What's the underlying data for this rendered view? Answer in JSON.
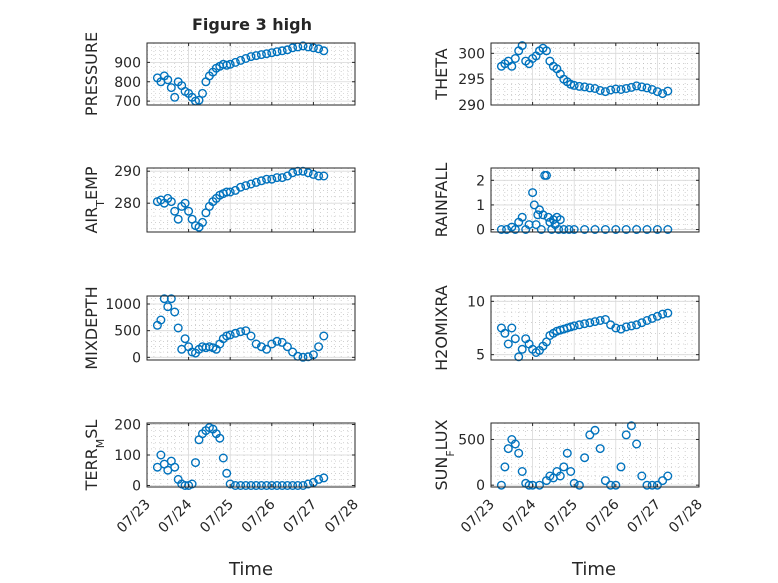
{
  "figure": {
    "title": "Figure 3 high",
    "xlabel": "Time",
    "date_ticks": [
      "07/23",
      "07/24",
      "07/25",
      "07/26",
      "07/27",
      "07/28"
    ],
    "colors": {
      "marker": "#0072BD",
      "axis": "#262626",
      "grid": "#b5b5b5"
    }
  },
  "chart_data": [
    {
      "type": "scatter",
      "ylabel": "PRESSURE",
      "ylim": [
        680,
        1000
      ],
      "yticks": [
        700,
        800,
        900
      ],
      "x": [
        "2023-07-23 06:00",
        "2023-07-23 08:00",
        "2023-07-23 10:00",
        "2023-07-23 12:00",
        "2023-07-23 14:00",
        "2023-07-23 16:00",
        "2023-07-23 18:00",
        "2023-07-23 20:00",
        "2023-07-23 22:00",
        "2023-07-24 00:00",
        "2023-07-24 02:00",
        "2023-07-24 04:00",
        "2023-07-24 06:00",
        "2023-07-24 08:00",
        "2023-07-24 10:00",
        "2023-07-24 12:00",
        "2023-07-24 14:00",
        "2023-07-24 16:00",
        "2023-07-24 18:00",
        "2023-07-24 20:00",
        "2023-07-24 22:00",
        "2023-07-25 00:00",
        "2023-07-25 03:00",
        "2023-07-25 06:00",
        "2023-07-25 09:00",
        "2023-07-25 12:00",
        "2023-07-25 15:00",
        "2023-07-25 18:00",
        "2023-07-25 21:00",
        "2023-07-26 00:00",
        "2023-07-26 03:00",
        "2023-07-26 06:00",
        "2023-07-26 09:00",
        "2023-07-26 12:00",
        "2023-07-26 15:00",
        "2023-07-26 18:00",
        "2023-07-26 21:00",
        "2023-07-27 00:00",
        "2023-07-27 03:00",
        "2023-07-27 06:00"
      ],
      "y": [
        820,
        800,
        830,
        810,
        770,
        720,
        800,
        780,
        750,
        740,
        720,
        700,
        705,
        740,
        800,
        830,
        850,
        870,
        880,
        890,
        885,
        890,
        900,
        910,
        920,
        930,
        935,
        940,
        945,
        950,
        955,
        960,
        965,
        975,
        980,
        985,
        980,
        975,
        970,
        960
      ]
    },
    {
      "type": "scatter",
      "ylabel": "THETA",
      "ylim": [
        290,
        302
      ],
      "yticks": [
        290,
        295,
        300
      ],
      "x": [
        "2023-07-23 06:00",
        "2023-07-23 08:00",
        "2023-07-23 10:00",
        "2023-07-23 12:00",
        "2023-07-23 14:00",
        "2023-07-23 16:00",
        "2023-07-23 18:00",
        "2023-07-23 20:00",
        "2023-07-23 22:00",
        "2023-07-24 00:00",
        "2023-07-24 02:00",
        "2023-07-24 04:00",
        "2023-07-24 06:00",
        "2023-07-24 08:00",
        "2023-07-24 10:00",
        "2023-07-24 12:00",
        "2023-07-24 14:00",
        "2023-07-24 16:00",
        "2023-07-24 18:00",
        "2023-07-24 20:00",
        "2023-07-24 22:00",
        "2023-07-25 00:00",
        "2023-07-25 03:00",
        "2023-07-25 06:00",
        "2023-07-25 09:00",
        "2023-07-25 12:00",
        "2023-07-25 15:00",
        "2023-07-25 18:00",
        "2023-07-25 21:00",
        "2023-07-26 00:00",
        "2023-07-26 03:00",
        "2023-07-26 06:00",
        "2023-07-26 09:00",
        "2023-07-26 12:00",
        "2023-07-26 15:00",
        "2023-07-26 18:00",
        "2023-07-26 21:00",
        "2023-07-27 00:00",
        "2023-07-27 03:00",
        "2023-07-27 06:00"
      ],
      "y": [
        297.5,
        298,
        298.5,
        297.5,
        299,
        300.5,
        301.5,
        298.5,
        298,
        299,
        299.5,
        300.5,
        301,
        300.5,
        298.5,
        297.5,
        297,
        296,
        295,
        294.5,
        294,
        293.8,
        293.6,
        293.5,
        293.3,
        293.2,
        292.8,
        292.6,
        292.9,
        293.1,
        293.0,
        293.2,
        293.4,
        293.7,
        293.5,
        293.3,
        293.0,
        292.6,
        292.2,
        292.7
      ]
    },
    {
      "type": "scatter",
      "ylabel": "AIR_TEMP",
      "ylim": [
        271,
        291
      ],
      "yticks": [
        280,
        290
      ],
      "x": [
        "2023-07-23 06:00",
        "2023-07-23 08:00",
        "2023-07-23 10:00",
        "2023-07-23 12:00",
        "2023-07-23 14:00",
        "2023-07-23 16:00",
        "2023-07-23 18:00",
        "2023-07-23 20:00",
        "2023-07-23 22:00",
        "2023-07-24 00:00",
        "2023-07-24 02:00",
        "2023-07-24 04:00",
        "2023-07-24 06:00",
        "2023-07-24 08:00",
        "2023-07-24 10:00",
        "2023-07-24 12:00",
        "2023-07-24 14:00",
        "2023-07-24 16:00",
        "2023-07-24 18:00",
        "2023-07-24 20:00",
        "2023-07-24 22:00",
        "2023-07-25 00:00",
        "2023-07-25 03:00",
        "2023-07-25 06:00",
        "2023-07-25 09:00",
        "2023-07-25 12:00",
        "2023-07-25 15:00",
        "2023-07-25 18:00",
        "2023-07-25 21:00",
        "2023-07-26 00:00",
        "2023-07-26 03:00",
        "2023-07-26 06:00",
        "2023-07-26 09:00",
        "2023-07-26 12:00",
        "2023-07-26 15:00",
        "2023-07-26 18:00",
        "2023-07-26 21:00",
        "2023-07-27 00:00",
        "2023-07-27 03:00",
        "2023-07-27 06:00"
      ],
      "y": [
        280.5,
        281,
        280,
        281.5,
        280.5,
        277.5,
        275,
        279,
        280,
        277.5,
        275,
        273,
        272.5,
        274,
        277,
        279,
        280.5,
        281.5,
        282.5,
        283,
        283.5,
        283.5,
        284,
        285,
        285.5,
        286,
        286.5,
        287,
        287.5,
        287.5,
        288,
        288,
        288.5,
        289.5,
        290,
        290,
        289.5,
        289,
        288.5,
        288.5
      ]
    },
    {
      "type": "scatter",
      "ylabel": "RAINFALL",
      "ylim": [
        -0.1,
        2.5
      ],
      "yticks": [
        0,
        1,
        2
      ],
      "x": [
        "2023-07-23 06:00",
        "2023-07-23 09:00",
        "2023-07-23 12:00",
        "2023-07-23 14:00",
        "2023-07-23 16:00",
        "2023-07-23 18:00",
        "2023-07-23 20:00",
        "2023-07-23 22:00",
        "2023-07-24 00:00",
        "2023-07-24 01:00",
        "2023-07-24 02:00",
        "2023-07-24 03:00",
        "2023-07-24 04:00",
        "2023-07-24 05:00",
        "2023-07-24 06:00",
        "2023-07-24 07:00",
        "2023-07-24 08:00",
        "2023-07-24 09:00",
        "2023-07-24 10:00",
        "2023-07-24 11:00",
        "2023-07-24 12:00",
        "2023-07-24 13:00",
        "2023-07-24 14:00",
        "2023-07-24 15:00",
        "2023-07-24 16:00",
        "2023-07-24 18:00",
        "2023-07-24 21:00",
        "2023-07-25 00:00",
        "2023-07-25 06:00",
        "2023-07-25 12:00",
        "2023-07-25 18:00",
        "2023-07-26 00:00",
        "2023-07-26 06:00",
        "2023-07-26 12:00",
        "2023-07-26 18:00",
        "2023-07-27 00:00",
        "2023-07-27 06:00"
      ],
      "y": [
        0,
        0,
        0.1,
        0,
        0.3,
        0.5,
        0,
        0.2,
        1.5,
        1.0,
        0.2,
        0.6,
        0.8,
        0,
        0.6,
        2.2,
        2.2,
        0.5,
        0.3,
        0,
        0.4,
        0.2,
        0.5,
        0,
        0.4,
        0,
        0,
        0,
        0,
        0,
        0,
        0,
        0,
        0,
        0,
        0,
        0
      ]
    },
    {
      "type": "scatter",
      "ylabel": "MIXDEPTH",
      "ylim": [
        -50,
        1150
      ],
      "yticks": [
        0,
        500,
        1000
      ],
      "x": [
        "2023-07-23 06:00",
        "2023-07-23 08:00",
        "2023-07-23 10:00",
        "2023-07-23 12:00",
        "2023-07-23 14:00",
        "2023-07-23 16:00",
        "2023-07-23 18:00",
        "2023-07-23 20:00",
        "2023-07-23 22:00",
        "2023-07-24 00:00",
        "2023-07-24 02:00",
        "2023-07-24 04:00",
        "2023-07-24 06:00",
        "2023-07-24 08:00",
        "2023-07-24 10:00",
        "2023-07-24 12:00",
        "2023-07-24 14:00",
        "2023-07-24 16:00",
        "2023-07-24 18:00",
        "2023-07-24 20:00",
        "2023-07-24 22:00",
        "2023-07-25 00:00",
        "2023-07-25 03:00",
        "2023-07-25 06:00",
        "2023-07-25 09:00",
        "2023-07-25 12:00",
        "2023-07-25 15:00",
        "2023-07-25 18:00",
        "2023-07-25 21:00",
        "2023-07-26 00:00",
        "2023-07-26 03:00",
        "2023-07-26 06:00",
        "2023-07-26 09:00",
        "2023-07-26 12:00",
        "2023-07-26 15:00",
        "2023-07-26 18:00",
        "2023-07-26 21:00",
        "2023-07-27 00:00",
        "2023-07-27 03:00",
        "2023-07-27 06:00"
      ],
      "y": [
        600,
        700,
        1100,
        950,
        1100,
        850,
        550,
        150,
        350,
        200,
        100,
        80,
        150,
        200,
        180,
        200,
        180,
        150,
        250,
        350,
        400,
        420,
        450,
        480,
        500,
        400,
        250,
        200,
        150,
        250,
        300,
        280,
        200,
        100,
        20,
        0,
        10,
        50,
        200,
        400
      ]
    },
    {
      "type": "scatter",
      "ylabel": "H2OMIXRA",
      "ylim": [
        4.5,
        10.5
      ],
      "yticks": [
        5,
        10
      ],
      "x": [
        "2023-07-23 06:00",
        "2023-07-23 08:00",
        "2023-07-23 10:00",
        "2023-07-23 12:00",
        "2023-07-23 14:00",
        "2023-07-23 16:00",
        "2023-07-23 18:00",
        "2023-07-23 20:00",
        "2023-07-23 22:00",
        "2023-07-24 00:00",
        "2023-07-24 02:00",
        "2023-07-24 04:00",
        "2023-07-24 06:00",
        "2023-07-24 08:00",
        "2023-07-24 10:00",
        "2023-07-24 12:00",
        "2023-07-24 14:00",
        "2023-07-24 16:00",
        "2023-07-24 18:00",
        "2023-07-24 20:00",
        "2023-07-24 22:00",
        "2023-07-25 00:00",
        "2023-07-25 03:00",
        "2023-07-25 06:00",
        "2023-07-25 09:00",
        "2023-07-25 12:00",
        "2023-07-25 15:00",
        "2023-07-25 18:00",
        "2023-07-25 21:00",
        "2023-07-26 00:00",
        "2023-07-26 03:00",
        "2023-07-26 06:00",
        "2023-07-26 09:00",
        "2023-07-26 12:00",
        "2023-07-26 15:00",
        "2023-07-26 18:00",
        "2023-07-26 21:00",
        "2023-07-27 00:00",
        "2023-07-27 03:00",
        "2023-07-27 06:00"
      ],
      "y": [
        7.5,
        7,
        6,
        7.5,
        6.5,
        4.8,
        5.5,
        6.5,
        6,
        5.5,
        5.2,
        5.4,
        5.8,
        6.2,
        6.8,
        7,
        7.2,
        7.3,
        7.4,
        7.5,
        7.6,
        7.7,
        7.8,
        7.9,
        8,
        8.1,
        8.2,
        8.3,
        7.8,
        7.5,
        7.4,
        7.6,
        7.7,
        7.8,
        8,
        8.2,
        8.4,
        8.6,
        8.8,
        8.9
      ]
    },
    {
      "type": "scatter",
      "ylabel": "TERR_MSL",
      "ylim": [
        -5,
        205
      ],
      "yticks": [
        0,
        100,
        200
      ],
      "x": [
        "2023-07-23 06:00",
        "2023-07-23 08:00",
        "2023-07-23 10:00",
        "2023-07-23 12:00",
        "2023-07-23 14:00",
        "2023-07-23 16:00",
        "2023-07-23 18:00",
        "2023-07-23 20:00",
        "2023-07-23 22:00",
        "2023-07-24 00:00",
        "2023-07-24 02:00",
        "2023-07-24 04:00",
        "2023-07-24 06:00",
        "2023-07-24 08:00",
        "2023-07-24 10:00",
        "2023-07-24 12:00",
        "2023-07-24 14:00",
        "2023-07-24 16:00",
        "2023-07-24 18:00",
        "2023-07-24 20:00",
        "2023-07-24 22:00",
        "2023-07-25 00:00",
        "2023-07-25 03:00",
        "2023-07-25 06:00",
        "2023-07-25 09:00",
        "2023-07-25 12:00",
        "2023-07-25 15:00",
        "2023-07-25 18:00",
        "2023-07-25 21:00",
        "2023-07-26 00:00",
        "2023-07-26 03:00",
        "2023-07-26 06:00",
        "2023-07-26 09:00",
        "2023-07-26 12:00",
        "2023-07-26 15:00",
        "2023-07-26 18:00",
        "2023-07-26 21:00",
        "2023-07-27 00:00",
        "2023-07-27 03:00",
        "2023-07-27 06:00"
      ],
      "y": [
        60,
        100,
        70,
        50,
        80,
        60,
        20,
        5,
        0,
        0,
        5,
        75,
        150,
        170,
        180,
        190,
        185,
        170,
        155,
        90,
        40,
        5,
        0,
        0,
        0,
        0,
        0,
        0,
        0,
        0,
        0,
        0,
        0,
        0,
        0,
        0,
        5,
        10,
        20,
        25
      ]
    },
    {
      "type": "scatter",
      "ylabel": "SUN_FLUX",
      "ylim": [
        -20,
        680
      ],
      "yticks": [
        0,
        500
      ],
      "x": [
        "2023-07-23 06:00",
        "2023-07-23 08:00",
        "2023-07-23 10:00",
        "2023-07-23 12:00",
        "2023-07-23 14:00",
        "2023-07-23 16:00",
        "2023-07-23 18:00",
        "2023-07-23 20:00",
        "2023-07-23 22:00",
        "2023-07-24 00:00",
        "2023-07-24 04:00",
        "2023-07-24 08:00",
        "2023-07-24 10:00",
        "2023-07-24 12:00",
        "2023-07-24 14:00",
        "2023-07-24 16:00",
        "2023-07-24 18:00",
        "2023-07-24 20:00",
        "2023-07-24 22:00",
        "2023-07-25 00:00",
        "2023-07-25 03:00",
        "2023-07-25 06:00",
        "2023-07-25 09:00",
        "2023-07-25 12:00",
        "2023-07-25 15:00",
        "2023-07-25 18:00",
        "2023-07-25 21:00",
        "2023-07-26 00:00",
        "2023-07-26 03:00",
        "2023-07-26 06:00",
        "2023-07-26 09:00",
        "2023-07-26 12:00",
        "2023-07-26 15:00",
        "2023-07-26 18:00",
        "2023-07-26 21:00",
        "2023-07-27 00:00",
        "2023-07-27 03:00",
        "2023-07-27 06:00"
      ],
      "y": [
        0,
        200,
        400,
        500,
        450,
        350,
        150,
        20,
        0,
        0,
        0,
        50,
        100,
        80,
        150,
        100,
        200,
        350,
        150,
        20,
        0,
        300,
        550,
        600,
        400,
        50,
        0,
        0,
        200,
        550,
        650,
        450,
        100,
        0,
        0,
        0,
        50,
        100
      ]
    }
  ]
}
